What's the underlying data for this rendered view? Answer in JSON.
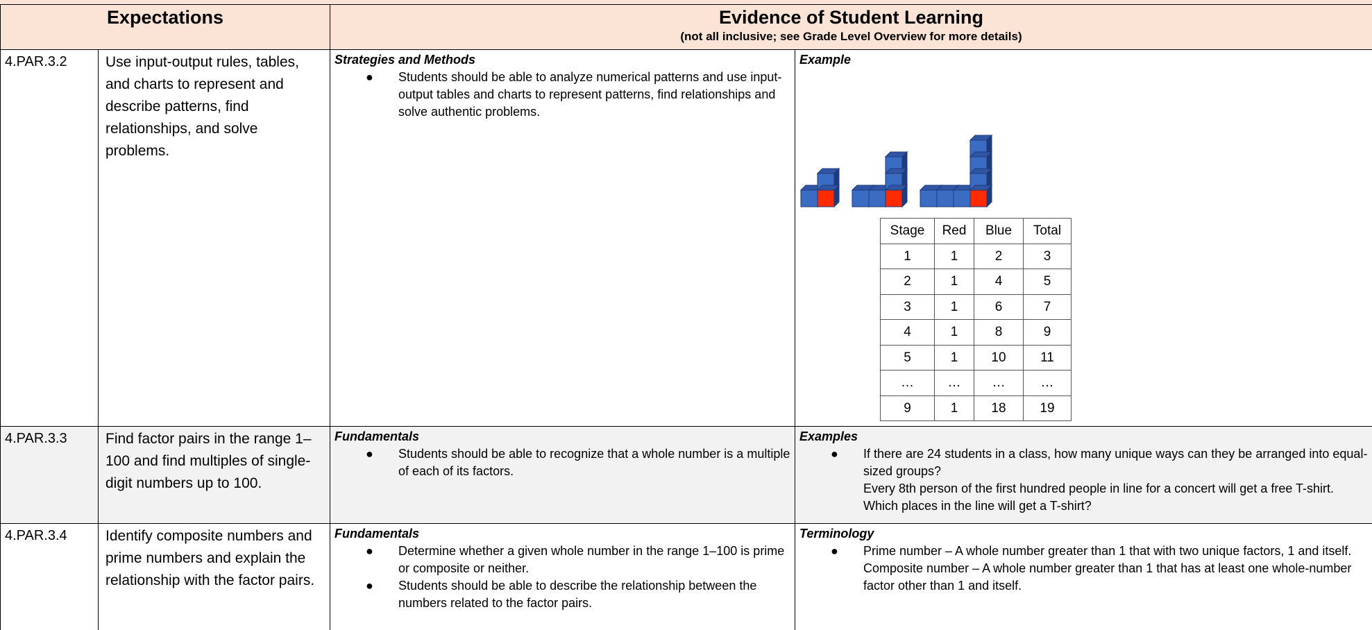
{
  "header": {
    "expectations": "Expectations",
    "evidence": "Evidence of Student Learning",
    "evidence_note": "(not all inclusive; see Grade Level Overview for more details)"
  },
  "rows": [
    {
      "code": "4.PAR.3.2",
      "expectation": "Use input-output rules, tables, and charts to represent and describe patterns, find relationships, and solve problems.",
      "left_heading": "Strategies and Methods",
      "left_items": [
        "Students should be able to analyze numerical patterns and use input-output tables and charts to represent patterns, find relationships and solve authentic problems."
      ],
      "right_heading": "Example",
      "table": {
        "columns": [
          "Stage",
          "Red",
          "Blue",
          "Total"
        ],
        "rows": [
          [
            1,
            1,
            2,
            3
          ],
          [
            2,
            1,
            4,
            5
          ],
          [
            3,
            1,
            6,
            7
          ],
          [
            4,
            1,
            8,
            9
          ],
          [
            5,
            1,
            10,
            11
          ],
          [
            "…",
            "…",
            "…",
            "…"
          ],
          [
            9,
            1,
            18,
            19
          ]
        ]
      }
    },
    {
      "code": "4.PAR.3.3",
      "expectation": "Find factor pairs in the range 1–100 and find multiples of single-digit numbers up to 100.",
      "left_heading": "Fundamentals",
      "left_items": [
        "Students should be able to recognize that a whole number is a multiple of each of its factors."
      ],
      "right_heading": "Examples",
      "right_items": [
        [
          "If there are 24 students in a class, how many unique ways can they be arranged into equal-sized groups?",
          "Every 8th person of the first hundred people in line for a concert will get a free T-shirt.  Which places in the line will get a T-shirt?"
        ]
      ]
    },
    {
      "code": "4.PAR.3.4",
      "expectation": "Identify composite numbers and prime numbers and explain the relationship with the factor pairs.",
      "left_heading": "Fundamentals",
      "left_items": [
        "Determine whether a given whole number in the range 1–100 is prime or composite or neither.",
        "Students should be able to describe the relationship between the numbers related to the factor pairs."
      ],
      "right_heading": "Terminology",
      "right_items": [
        [
          "Prime number – A whole number greater than 1 that with two unique factors, 1 and itself.",
          "Composite number – A whole number greater than 1 that has at least one whole-number factor other than 1 and itself."
        ]
      ]
    }
  ]
}
